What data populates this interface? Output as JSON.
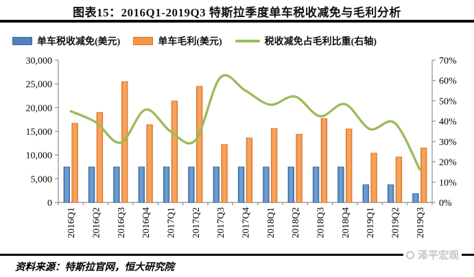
{
  "title": "图表15：2016Q1-2019Q3 特斯拉季度单车税收减免与毛利分析",
  "legend": {
    "tax_credit": "单车税收减免(美元)",
    "gross_profit": "单车毛利(美元)",
    "ratio": "税收减免占毛利比重(右轴)"
  },
  "colors": {
    "tax_credit_fill": "#4F81BD",
    "tax_credit_edge": "#38669C",
    "gross_profit_fill": "#F79646",
    "gross_profit_edge": "#CE742A",
    "ratio_line": "#9BBB59",
    "axis": "#8C8C8C",
    "text": "#000000",
    "rule": "#000000",
    "watermark": "#C6C6C6"
  },
  "chart_data": {
    "type": "bar",
    "subtype": "combo-bar-line",
    "categories": [
      "2016Q1",
      "2016Q2",
      "2016Q3",
      "2016Q4",
      "2017Q1",
      "2017Q2",
      "2017Q3",
      "2017Q4",
      "2018Q1",
      "2018Q2",
      "2018Q3",
      "2018Q4",
      "2019Q1",
      "2019Q2",
      "2019Q3"
    ],
    "series": [
      {
        "name": "单车税收减免(美元)",
        "type": "bar",
        "axis": "left",
        "color": "#4F81BD",
        "values": [
          7500,
          7500,
          7500,
          7500,
          7500,
          7500,
          7500,
          7500,
          7500,
          7500,
          7500,
          7500,
          3750,
          3750,
          1875
        ]
      },
      {
        "name": "单车毛利(美元)",
        "type": "bar",
        "axis": "left",
        "color": "#F79646",
        "values": [
          16700,
          19000,
          25500,
          16400,
          21400,
          24500,
          12200,
          13600,
          15600,
          14400,
          17700,
          15500,
          10400,
          9600,
          11500
        ]
      },
      {
        "name": "税收减免占毛利比重(右轴)",
        "type": "line",
        "axis": "right",
        "color": "#9BBB59",
        "values": [
          44.9,
          39.5,
          29.4,
          45.7,
          35.0,
          30.6,
          61.5,
          55.1,
          48.1,
          52.1,
          42.4,
          48.4,
          36.1,
          39.1,
          16.3
        ]
      }
    ],
    "left_axis": {
      "min": 0,
      "max": 30000,
      "step": 5000,
      "tick_labels": [
        "0",
        "5,000",
        "10,000",
        "15,000",
        "20,000",
        "25,000",
        "30,000"
      ]
    },
    "right_axis": {
      "min": 0,
      "max": 70,
      "step": 10,
      "tick_labels": [
        "0%",
        "10%",
        "20%",
        "30%",
        "40%",
        "50%",
        "60%",
        "70%"
      ]
    },
    "grid": false,
    "legend_position": "top",
    "xlabel": "",
    "ylabel": ""
  },
  "footer": {
    "source": "资料来源：特斯拉官网，恒大研究院",
    "watermark": "泽平宏观"
  }
}
